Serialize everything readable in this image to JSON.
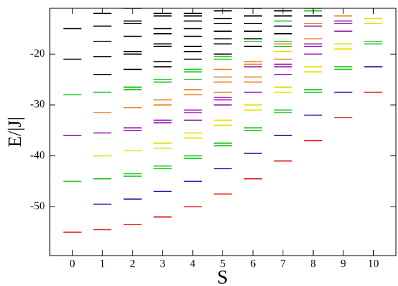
{
  "chart_data": {
    "type": "scatter",
    "x_label": "S",
    "y_label": "E/|J|",
    "xlim": [
      -0.75,
      10.75
    ],
    "ylim": [
      -59.6,
      -11
    ],
    "xticks": [
      0,
      1,
      2,
      3,
      4,
      5,
      6,
      7,
      8,
      9,
      10
    ],
    "yticks": [
      -50,
      -40,
      -30,
      -20
    ],
    "series": [
      {
        "color": "#e32219",
        "x": [
          0,
          1,
          2,
          3,
          4,
          5,
          6,
          7,
          8,
          9,
          10
        ],
        "y": [
          -55,
          -54.5,
          -53.5,
          -52,
          -50,
          -47.5,
          -44.5,
          -41,
          -37,
          -32.5,
          -27.5
        ]
      },
      {
        "color": "#1c1ca8",
        "x": [
          1,
          2,
          3,
          4,
          5,
          6,
          7,
          8,
          9,
          10
        ],
        "y": [
          -49.5,
          -48.5,
          -47,
          -45,
          -42.5,
          -39.5,
          -36,
          -32,
          -27.5,
          -22.5
        ]
      },
      {
        "color": "#1fc81f",
        "x": [
          0,
          0,
          1,
          1,
          2,
          2,
          2,
          2,
          3,
          3,
          3,
          3,
          4,
          4,
          4,
          4,
          4,
          5,
          5,
          5,
          5,
          6,
          6,
          6,
          7,
          7,
          7,
          7,
          7,
          8,
          8,
          8,
          8,
          9,
          9,
          10,
          10
        ],
        "y": [
          -28,
          -45,
          -27.5,
          -44.5,
          -26.5,
          -27,
          -43.5,
          -44,
          -25,
          -25.5,
          -42,
          -42.5,
          -23,
          -23.5,
          -25,
          -40,
          -40.5,
          -20.5,
          -21,
          -37.5,
          -38,
          -17.5,
          -34.5,
          -35,
          -13.5,
          -17.5,
          -18.5,
          -31,
          -31.5,
          -11,
          -11.5,
          -27,
          -27.5,
          -22.5,
          -23,
          -17.5,
          -18
        ]
      },
      {
        "color": "#9a1db4",
        "x": [
          0,
          1,
          2,
          2,
          3,
          3,
          4,
          4,
          4,
          5,
          5,
          5,
          6,
          6,
          7,
          7,
          7,
          8,
          8,
          8,
          8,
          9,
          9,
          9
        ],
        "y": [
          -36,
          -35.5,
          -34.5,
          -35,
          -33,
          -33.5,
          -31,
          -31.5,
          -33,
          -28.5,
          -29,
          -30,
          -22.5,
          -27.5,
          -22,
          -22.5,
          -24,
          -14.5,
          -18,
          -18.5,
          -20,
          -13.5,
          -14,
          -15.5
        ]
      },
      {
        "color": "#e4e000",
        "x": [
          1,
          2,
          3,
          3,
          4,
          4,
          5,
          5,
          6,
          6,
          7,
          7,
          7,
          8,
          8,
          9,
          9,
          10,
          10
        ],
        "y": [
          -40,
          -39,
          -37.5,
          -38.5,
          -35.5,
          -36.5,
          -33,
          -34,
          -30,
          -31,
          -19.5,
          -26.5,
          -27.5,
          -22.5,
          -23.5,
          -18,
          -19,
          -13,
          -14
        ]
      },
      {
        "color": "#f0801e",
        "x": [
          1,
          2,
          3,
          3,
          4,
          4,
          5,
          5,
          5,
          5,
          6,
          6,
          6,
          6,
          7,
          7,
          8,
          8,
          9
        ],
        "y": [
          -31.5,
          -30.5,
          -29,
          -30,
          -27,
          -28,
          -23,
          -24.5,
          -25.5,
          -27.5,
          -21.5,
          -22,
          -24.5,
          -25.5,
          -18,
          -21,
          -14,
          -17,
          -12.5
        ]
      },
      {
        "color": "#000000",
        "x": [
          0,
          0,
          1,
          1,
          1,
          1,
          1,
          2,
          2,
          2,
          2,
          2,
          2,
          2,
          3,
          3,
          3,
          3,
          3,
          3,
          3,
          3,
          4,
          4,
          4,
          4,
          4,
          4,
          4,
          4,
          5,
          5,
          5,
          5,
          5,
          5,
          5,
          6,
          6,
          6,
          6,
          6,
          6,
          7,
          7,
          7,
          7,
          8
        ],
        "y": [
          -15,
          -21,
          -12,
          -14.5,
          -17.5,
          -20.5,
          -24,
          -11,
          -13.5,
          -14,
          -16.5,
          -19.5,
          -20,
          -23,
          -12,
          -12.5,
          -15,
          -16,
          -18,
          -18.5,
          -21.5,
          -22.5,
          -12,
          -12.5,
          -13.5,
          -15,
          -16.5,
          -18.5,
          -19.5,
          -21,
          -11.5,
          -13,
          -14,
          -15.5,
          -17,
          -18,
          -20,
          -11,
          -12.5,
          -14,
          -15.5,
          -17,
          -18.5,
          -11.5,
          -12.5,
          -14.5,
          -16,
          -12.5
        ]
      }
    ]
  }
}
